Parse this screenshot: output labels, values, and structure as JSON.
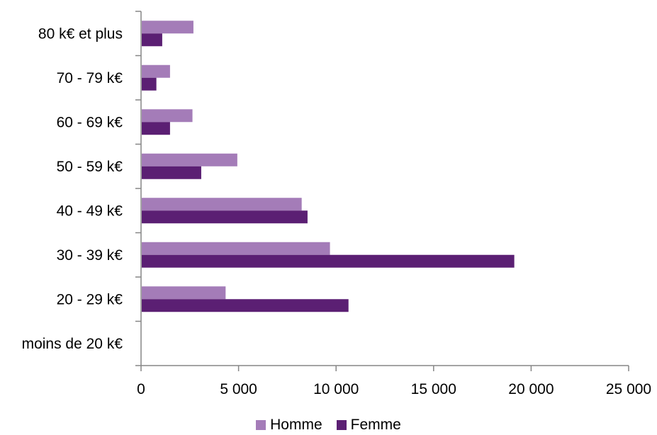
{
  "chart_data": {
    "type": "bar",
    "orientation": "horizontal",
    "categories": [
      "moins de 20 k€",
      "20 - 29 k€",
      "30 - 39 k€",
      "40 - 49 k€",
      "50 - 59 k€",
      "60 - 69 k€",
      "70 - 79 k€",
      "80 k€ et plus"
    ],
    "series": [
      {
        "name": "Homme",
        "color": "#a47cb8",
        "values": [
          0,
          4300,
          9650,
          8200,
          4900,
          2600,
          1450,
          2650
        ]
      },
      {
        "name": "Femme",
        "color": "#5b1f73",
        "values": [
          0,
          10600,
          19100,
          8500,
          3050,
          1450,
          750,
          1050
        ]
      }
    ],
    "x_ticks": [
      0,
      5000,
      10000,
      15000,
      20000,
      25000
    ],
    "x_tick_labels": [
      "0",
      "5 000",
      "10 000",
      "15 000",
      "20 000",
      "25 000"
    ],
    "xlim": [
      0,
      25000
    ],
    "grid": false,
    "legend_position": "bottom",
    "title": "",
    "xlabel": "",
    "ylabel": ""
  }
}
